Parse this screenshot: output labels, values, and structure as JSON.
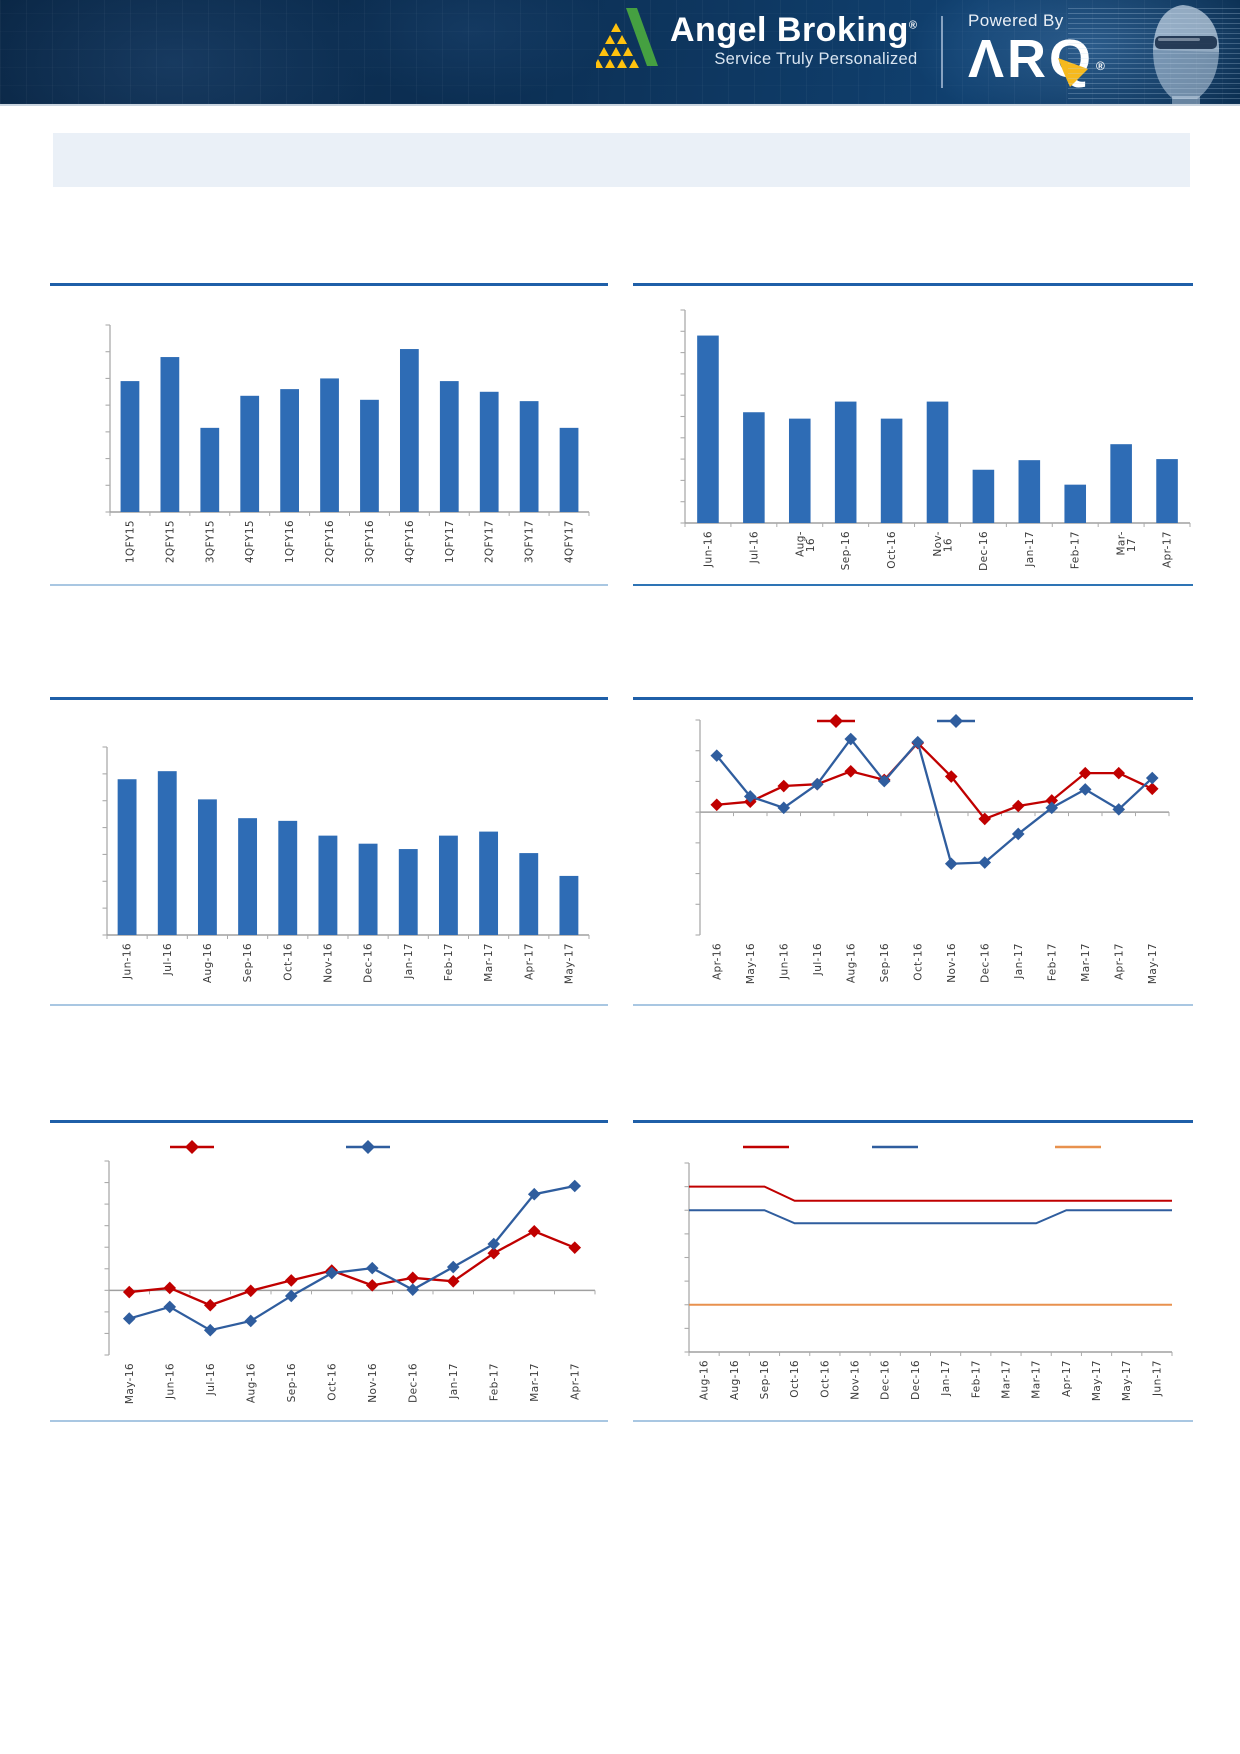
{
  "page": {
    "background": "#FFFFFF",
    "divider_color_top": "#1F5FA8",
    "divider_color_bottom": "#A9C7E2",
    "banner_color": "#EAF0F7",
    "banner_text": ""
  },
  "header": {
    "brand": "Angel Broking",
    "brand_mark": "®",
    "tagline": "Service Truly Personalized",
    "powered_by": "Powered By",
    "product_display": "ΛRQ",
    "product_mark": "®",
    "colors": {
      "background": "#0C3055",
      "logo_yellow": "#FFC20E",
      "logo_green": "#45A041",
      "bolt_yellow": "#F6B91E"
    }
  },
  "chart_data": [
    {
      "id": "top-left-quarterly-bar",
      "type": "bar",
      "title": "",
      "categories": [
        "1QFY15",
        "2QFY15",
        "3QFY15",
        "4QFY15",
        "1QFY16",
        "2QFY16",
        "3QFY16",
        "4QFY16",
        "1QFY17",
        "2QFY17",
        "3QFY17",
        "4QFY17"
      ],
      "values": [
        4.9,
        5.8,
        3.15,
        4.35,
        4.6,
        5.0,
        4.2,
        6.1,
        4.9,
        4.5,
        4.15,
        3.15
      ],
      "values_unit": "axis divisions (y tick labels not visible)",
      "ylim": [
        0,
        7
      ],
      "ytick_step": 1,
      "y_tick_labels_visible": false,
      "grid": false,
      "tick_label_rotation": 90,
      "color": "#2E6CB5"
    },
    {
      "id": "top-right-monthly-bar",
      "type": "bar",
      "title": "",
      "categories": [
        "Jun-16",
        "Jul-16",
        "Aug-\n16",
        "Sep-16",
        "Oct-16",
        "Nov-\n16",
        "Dec-16",
        "Jan-17",
        "Feb-17",
        "Mar-\n17",
        "Apr-17"
      ],
      "values": [
        8.8,
        5.2,
        4.9,
        5.7,
        4.9,
        5.7,
        2.5,
        2.95,
        1.8,
        3.7,
        3.0
      ],
      "values_unit": "axis divisions (y tick labels not visible)",
      "ylim": [
        0,
        10
      ],
      "ytick_step": 1,
      "y_tick_labels_visible": false,
      "grid": false,
      "tick_label_rotation": 90,
      "color": "#2E6CB5"
    },
    {
      "id": "middle-left-monthly-bar",
      "type": "bar",
      "title": "",
      "categories": [
        "Jun-16",
        "Jul-16",
        "Aug-16",
        "Sep-16",
        "Oct-16",
        "Nov-16",
        "Dec-16",
        "Jan-17",
        "Feb-17",
        "Mar-17",
        "Apr-17",
        "May-17"
      ],
      "values": [
        5.8,
        6.1,
        5.05,
        4.35,
        4.25,
        3.7,
        3.4,
        3.2,
        3.7,
        3.85,
        3.05,
        2.2
      ],
      "values_unit": "axis divisions (y tick labels not visible)",
      "ylim": [
        0,
        7
      ],
      "ytick_step": 1,
      "y_tick_labels_visible": false,
      "grid": false,
      "tick_label_rotation": 90,
      "color": "#2E6CB5"
    },
    {
      "id": "middle-right-two-line",
      "type": "line",
      "title": "",
      "x": [
        "Apr-16",
        "May-16",
        "Jun-16",
        "Jul-16",
        "Aug-16",
        "Sep-16",
        "Oct-16",
        "Nov-16",
        "Dec-16",
        "Jan-17",
        "Feb-17",
        "Mar-17",
        "Apr-17",
        "May-17"
      ],
      "series": [
        {
          "name": "series-red",
          "color": "#C00000",
          "marker": "diamond",
          "values": [
            0.24,
            0.34,
            0.85,
            0.91,
            1.33,
            1.05,
            2.25,
            1.16,
            -0.22,
            0.2,
            0.38,
            1.27,
            1.27,
            0.76
          ]
        },
        {
          "name": "series-blue",
          "color": "#2F5D9E",
          "marker": "diamond",
          "values": [
            1.84,
            0.51,
            0.14,
            0.91,
            2.38,
            1.01,
            2.28,
            -1.68,
            -1.64,
            -0.71,
            0.14,
            0.74,
            0.09,
            1.11
          ]
        }
      ],
      "values_unit": "axis divisions (y tick labels not visible)",
      "ylim": [
        -4,
        3
      ],
      "ytick_step": 1,
      "y_tick_labels_visible": false,
      "legend_position": "top",
      "legend_labels_visible": false,
      "grid": false,
      "tick_label_rotation": 90
    },
    {
      "id": "bottom-left-two-line",
      "type": "line",
      "title": "",
      "x": [
        "May-16",
        "Jun-16",
        "Jul-16",
        "Aug-16",
        "Sep-16",
        "Oct-16",
        "Nov-16",
        "Dec-16",
        "Jan-17",
        "Feb-17",
        "Mar-17",
        "Apr-17"
      ],
      "series": [
        {
          "name": "series-red",
          "color": "#C00000",
          "marker": "diamond",
          "values": [
            -0.08,
            0.11,
            -0.69,
            -0.02,
            0.46,
            0.92,
            0.23,
            0.58,
            0.42,
            1.72,
            2.74,
            1.98
          ]
        },
        {
          "name": "series-blue",
          "color": "#2F5D9E",
          "marker": "diamond",
          "values": [
            -1.31,
            -0.77,
            -1.85,
            -1.42,
            -0.26,
            0.8,
            1.03,
            0.03,
            1.08,
            2.15,
            4.46,
            4.84
          ]
        }
      ],
      "values_unit": "axis divisions (y tick labels not visible)",
      "ylim": [
        -3,
        6
      ],
      "ytick_step": 1,
      "y_tick_labels_visible": false,
      "legend_position": "top",
      "legend_labels_visible": false,
      "grid": false,
      "tick_label_rotation": 90
    },
    {
      "id": "bottom-right-three-step-line",
      "type": "line",
      "line_style": "step",
      "title": "",
      "x": [
        "Aug-16",
        "Aug-16",
        "Sep-16",
        "Oct-16",
        "Oct-16",
        "Nov-16",
        "Dec-16",
        "Dec-16",
        "Jan-17",
        "Feb-17",
        "Mar-17",
        "Mar-17",
        "Apr-17",
        "May-17",
        "May-17",
        "Jun-17"
      ],
      "series": [
        {
          "name": "series-red",
          "color": "#C00000",
          "marker": "none",
          "values": [
            7,
            7,
            7,
            6.4,
            6.4,
            6.4,
            6.4,
            6.4,
            6.4,
            6.4,
            6.4,
            6.4,
            6.4,
            6.4,
            6.4,
            6.4
          ]
        },
        {
          "name": "series-blue",
          "color": "#2F5D9E",
          "marker": "none",
          "values": [
            6,
            6,
            6,
            5.45,
            5.45,
            5.45,
            5.45,
            5.45,
            5.45,
            5.45,
            5.45,
            5.45,
            6,
            6,
            6,
            6
          ]
        },
        {
          "name": "series-orange",
          "color": "#E8914E",
          "marker": "none",
          "values": [
            2,
            2,
            2,
            2,
            2,
            2,
            2,
            2,
            2,
            2,
            2,
            2,
            2,
            2,
            2,
            2
          ]
        }
      ],
      "values_unit": "axis divisions (y tick labels not visible)",
      "ylim": [
        0,
        8
      ],
      "ytick_step": 1,
      "y_tick_labels_visible": false,
      "legend_position": "top",
      "legend_labels_visible": false,
      "grid": false,
      "tick_label_rotation": 90
    }
  ]
}
